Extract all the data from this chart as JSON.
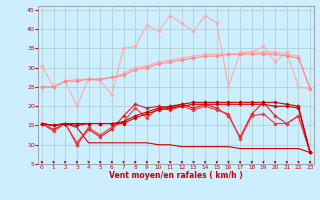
{
  "x": [
    0,
    1,
    2,
    3,
    4,
    5,
    6,
    7,
    8,
    9,
    10,
    11,
    12,
    13,
    14,
    15,
    16,
    17,
    18,
    19,
    20,
    21,
    22,
    23
  ],
  "series": [
    {
      "color": "#ffaaaa",
      "marker": "D",
      "markersize": 1.8,
      "linewidth": 0.8,
      "y": [
        30.5,
        25.0,
        26.5,
        20.0,
        27.0,
        26.5,
        23.0,
        35.0,
        35.5,
        41.0,
        39.5,
        43.5,
        41.5,
        39.5,
        43.5,
        41.5,
        25.0,
        34.0,
        34.0,
        35.5,
        31.5,
        34.0,
        25.0,
        24.5
      ]
    },
    {
      "color": "#ffaaaa",
      "marker": "D",
      "markersize": 1.8,
      "linewidth": 0.8,
      "y": [
        25.0,
        25.0,
        26.5,
        27.0,
        27.0,
        27.0,
        27.5,
        28.5,
        30.0,
        30.5,
        31.5,
        32.0,
        32.5,
        33.0,
        33.5,
        33.5,
        33.5,
        33.5,
        34.0,
        34.0,
        34.0,
        33.5,
        33.0,
        24.5
      ]
    },
    {
      "color": "#ff8888",
      "marker": "D",
      "markersize": 1.8,
      "linewidth": 0.8,
      "y": [
        25.0,
        25.0,
        26.5,
        26.5,
        27.0,
        27.0,
        27.5,
        28.0,
        29.5,
        30.0,
        31.0,
        31.5,
        32.0,
        32.5,
        33.0,
        33.0,
        33.5,
        33.5,
        33.5,
        33.5,
        33.5,
        33.0,
        32.5,
        24.5
      ]
    },
    {
      "color": "#dd2222",
      "marker": "D",
      "markersize": 1.8,
      "linewidth": 0.8,
      "y": [
        15.5,
        14.0,
        15.5,
        10.0,
        14.0,
        12.0,
        14.0,
        17.5,
        20.5,
        19.5,
        20.0,
        19.5,
        20.5,
        19.5,
        20.5,
        19.5,
        17.5,
        12.0,
        18.0,
        21.0,
        17.5,
        15.5,
        17.5,
        8.0
      ]
    },
    {
      "color": "#ff3333",
      "marker": "D",
      "markersize": 1.8,
      "linewidth": 0.8,
      "y": [
        15.5,
        13.5,
        15.5,
        10.5,
        14.5,
        12.5,
        14.5,
        16.0,
        19.5,
        17.0,
        19.5,
        19.0,
        20.0,
        19.0,
        20.0,
        19.0,
        18.0,
        11.5,
        17.5,
        18.0,
        15.5,
        15.5,
        17.5,
        8.0
      ]
    },
    {
      "color": "#cc0000",
      "marker": "D",
      "markersize": 1.8,
      "linewidth": 0.8,
      "y": [
        15.5,
        15.0,
        15.5,
        15.5,
        15.5,
        15.5,
        15.5,
        16.0,
        17.5,
        18.5,
        19.5,
        20.0,
        20.5,
        21.0,
        21.0,
        21.0,
        21.0,
        21.0,
        21.0,
        21.0,
        21.0,
        20.5,
        20.0,
        8.0
      ]
    },
    {
      "color": "#cc0000",
      "marker": "D",
      "markersize": 1.8,
      "linewidth": 0.8,
      "y": [
        15.5,
        15.0,
        15.5,
        15.0,
        15.5,
        15.5,
        15.5,
        15.5,
        17.0,
        18.0,
        19.0,
        19.5,
        20.0,
        20.5,
        20.5,
        20.5,
        20.5,
        20.5,
        20.5,
        20.5,
        20.0,
        20.0,
        19.5,
        8.0
      ]
    },
    {
      "color": "#cc0000",
      "marker": null,
      "linewidth": 0.8,
      "y": [
        15.5,
        15.0,
        15.5,
        14.5,
        10.5,
        10.5,
        10.5,
        10.5,
        10.5,
        10.5,
        10.0,
        10.0,
        9.5,
        9.5,
        9.5,
        9.5,
        9.5,
        9.0,
        9.0,
        9.0,
        9.0,
        9.0,
        9.0,
        8.0
      ]
    }
  ],
  "xlim": [
    -0.3,
    23.3
  ],
  "ylim": [
    5,
    46
  ],
  "yticks": [
    5,
    10,
    15,
    20,
    25,
    30,
    35,
    40,
    45
  ],
  "xticks": [
    0,
    1,
    2,
    3,
    4,
    5,
    6,
    7,
    8,
    9,
    10,
    11,
    12,
    13,
    14,
    15,
    16,
    17,
    18,
    19,
    20,
    21,
    22,
    23
  ],
  "xlabel": "Vent moyen/en rafales ( km/h )",
  "xlabel_color": "#cc0000",
  "bg_color": "#cceeff",
  "grid_color": "#aacccc",
  "tick_color": "#cc0000",
  "axis_color": "#888888",
  "arrow_color": "#cc0000"
}
